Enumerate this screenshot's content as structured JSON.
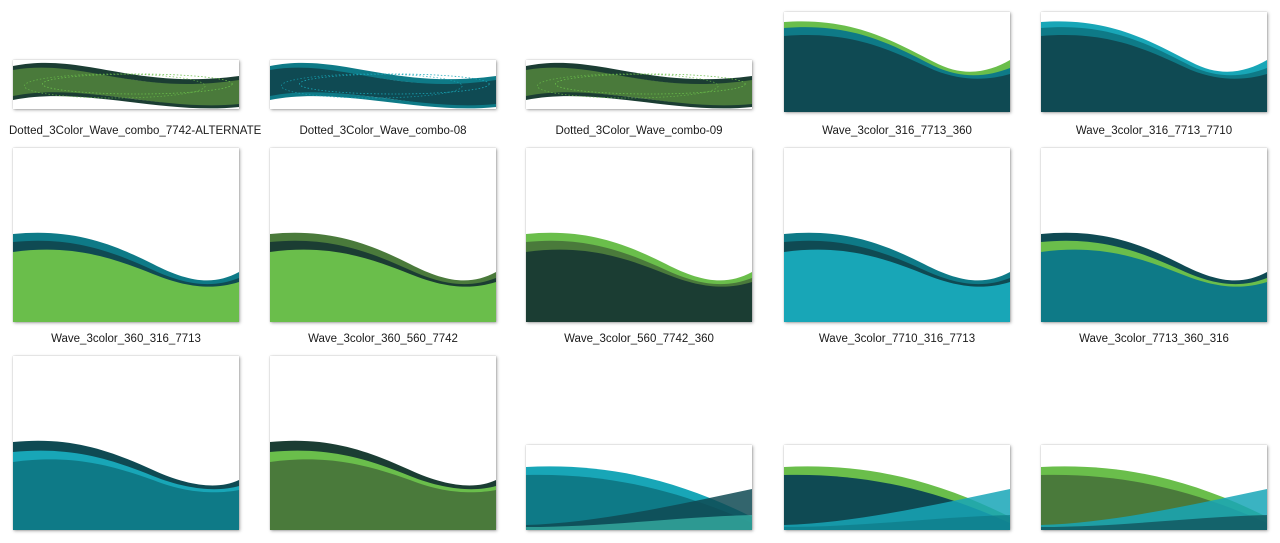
{
  "colors": {
    "c316": "#0f4a53",
    "c7713": "#0e7a87",
    "c7710": "#18a6b7",
    "c360": "#6abe4b",
    "c560": "#1b3d33",
    "c7742": "#4a7a3b",
    "teal_light": "#3bb8a9"
  },
  "files": [
    {
      "name": "Dotted_3Color_Wave_combo_7742-ALTERNATE",
      "thumb_type": "dotted-wave",
      "palette": [
        "#4a7a3b",
        "#1b3d33",
        "#6abe4b"
      ]
    },
    {
      "name": "Dotted_3Color_Wave_combo-08",
      "thumb_type": "dotted-wave",
      "palette": [
        "#0f4a53",
        "#0e7a87",
        "#18a6b7"
      ]
    },
    {
      "name": "Dotted_3Color_Wave_combo-09",
      "thumb_type": "dotted-wave",
      "palette": [
        "#4a7a3b",
        "#1b3d33",
        "#6abe4b"
      ]
    },
    {
      "name": "Wave_3color_316_7713_360",
      "thumb_type": "wave-short",
      "palette": [
        "#6abe4b",
        "#0e7a87",
        "#0f4a53"
      ]
    },
    {
      "name": "Wave_3color_316_7713_7710",
      "thumb_type": "wave-short",
      "palette": [
        "#18a6b7",
        "#0e7a87",
        "#0f4a53"
      ]
    },
    {
      "name": "Wave_3color_360_316_7713",
      "thumb_type": "wave-tall",
      "palette": [
        "#0e7a87",
        "#0f4a53",
        "#6abe4b"
      ]
    },
    {
      "name": "Wave_3color_360_560_7742",
      "thumb_type": "wave-tall",
      "palette": [
        "#4a7a3b",
        "#1b3d33",
        "#6abe4b"
      ]
    },
    {
      "name": "Wave_3color_560_7742_360",
      "thumb_type": "wave-tall",
      "palette": [
        "#6abe4b",
        "#4a7a3b",
        "#1b3d33"
      ]
    },
    {
      "name": "Wave_3color_7710_316_7713",
      "thumb_type": "wave-tall",
      "palette": [
        "#0e7a87",
        "#0f4a53",
        "#18a6b7"
      ]
    },
    {
      "name": "Wave_3color_7713_360_316",
      "thumb_type": "wave-tall",
      "palette": [
        "#0f4a53",
        "#6abe4b",
        "#0e7a87"
      ]
    },
    {
      "name": "",
      "thumb_type": "wave-tall-low",
      "palette": [
        "#0f4a53",
        "#18a6b7",
        "#0e7a87"
      ]
    },
    {
      "name": "",
      "thumb_type": "wave-tall-low",
      "palette": [
        "#1b3d33",
        "#6abe4b",
        "#4a7a3b"
      ]
    },
    {
      "name": "",
      "thumb_type": "cross-wave",
      "palette": [
        "#18a6b7",
        "#0e7a87",
        "#0f4a53",
        "#3bb8a9"
      ]
    },
    {
      "name": "",
      "thumb_type": "cross-wave",
      "palette": [
        "#6abe4b",
        "#0f4a53",
        "#18a6b7",
        "#0e7a87"
      ]
    },
    {
      "name": "",
      "thumb_type": "cross-wave",
      "palette": [
        "#6abe4b",
        "#4a7a3b",
        "#18a6b7",
        "#0f4a53"
      ]
    }
  ]
}
